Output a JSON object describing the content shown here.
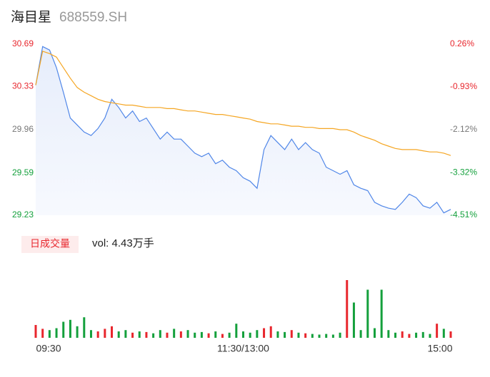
{
  "header": {
    "name": "海目星",
    "code": "688559.SH"
  },
  "chart_data": [
    {
      "type": "line",
      "xlim": [
        0,
        240
      ],
      "xticks": [
        {
          "value": 0,
          "label": "09:30"
        },
        {
          "value": 120,
          "label": "11:30/13:00"
        },
        {
          "value": 240,
          "label": "15:00"
        }
      ],
      "ylim": [
        29.23,
        30.69
      ],
      "yticks": [
        30.69,
        30.33,
        29.96,
        29.59,
        29.23
      ],
      "y2lim": [
        -4.51,
        0.26
      ],
      "y2ticks": [
        {
          "value": 0.26,
          "label": "0.26%"
        },
        {
          "value": -0.93,
          "label": "-0.93%"
        },
        {
          "value": -2.12,
          "label": "-2.12%"
        },
        {
          "value": -3.32,
          "label": "-3.32%"
        },
        {
          "value": -4.51,
          "label": "-4.51%"
        }
      ],
      "ytick_colors": [
        "#e8262d",
        "#e8262d",
        "#777777",
        "#14a03c",
        "#14a03c"
      ],
      "x": [
        0,
        4,
        8,
        12,
        16,
        20,
        24,
        28,
        32,
        36,
        40,
        44,
        48,
        52,
        56,
        60,
        64,
        68,
        72,
        76,
        80,
        84,
        88,
        92,
        96,
        100,
        104,
        108,
        112,
        116,
        120,
        124,
        128,
        132,
        136,
        140,
        144,
        148,
        152,
        156,
        160,
        164,
        168,
        172,
        176,
        180,
        184,
        188,
        192,
        196,
        200,
        204,
        208,
        212,
        216,
        220,
        224,
        228,
        232,
        236,
        240
      ],
      "series": [
        {
          "name": "price",
          "color": "#4f86e8",
          "area": true,
          "values": [
            30.34,
            30.67,
            30.64,
            30.49,
            30.28,
            30.06,
            30.0,
            29.94,
            29.91,
            29.97,
            30.06,
            30.22,
            30.15,
            30.06,
            30.12,
            30.03,
            30.06,
            29.97,
            29.88,
            29.94,
            29.88,
            29.88,
            29.82,
            29.76,
            29.73,
            29.76,
            29.67,
            29.7,
            29.64,
            29.61,
            29.55,
            29.52,
            29.46,
            29.79,
            29.91,
            29.85,
            29.79,
            29.88,
            29.79,
            29.85,
            29.79,
            29.76,
            29.64,
            29.61,
            29.58,
            29.61,
            29.49,
            29.46,
            29.44,
            29.34,
            29.31,
            29.29,
            29.28,
            29.34,
            29.41,
            29.38,
            29.31,
            29.29,
            29.34,
            29.25,
            29.28
          ]
        },
        {
          "name": "average",
          "color": "#f5a623",
          "values": [
            30.34,
            30.63,
            30.61,
            30.58,
            30.49,
            30.4,
            30.32,
            30.28,
            30.25,
            30.22,
            30.2,
            30.19,
            30.18,
            30.17,
            30.17,
            30.16,
            30.15,
            30.15,
            30.15,
            30.14,
            30.14,
            30.13,
            30.12,
            30.12,
            30.11,
            30.1,
            30.09,
            30.09,
            30.08,
            30.07,
            30.06,
            30.05,
            30.03,
            30.02,
            30.01,
            30.01,
            30.0,
            29.99,
            29.99,
            29.98,
            29.98,
            29.97,
            29.97,
            29.97,
            29.96,
            29.96,
            29.94,
            29.91,
            29.89,
            29.87,
            29.84,
            29.82,
            29.8,
            29.79,
            29.79,
            29.79,
            29.78,
            29.77,
            29.77,
            29.76,
            29.74
          ]
        }
      ]
    },
    {
      "type": "bar",
      "label": "日成交量",
      "volume_text": "vol: 4.43万手",
      "xlim": [
        0,
        240
      ],
      "ylim": [
        0,
        100
      ],
      "up_color": "#e8262d",
      "down_color": "#14a03c",
      "x": [
        0,
        4,
        8,
        12,
        16,
        20,
        24,
        28,
        32,
        36,
        40,
        44,
        48,
        52,
        56,
        60,
        64,
        68,
        72,
        76,
        80,
        84,
        88,
        92,
        96,
        100,
        104,
        108,
        112,
        116,
        120,
        124,
        128,
        132,
        136,
        140,
        144,
        148,
        152,
        156,
        160,
        164,
        168,
        172,
        176,
        180,
        184,
        188,
        192,
        196,
        200,
        204,
        208,
        212,
        216,
        220,
        224,
        228,
        232,
        236,
        240
      ],
      "values": [
        20,
        14,
        12,
        15,
        25,
        28,
        18,
        32,
        12,
        10,
        14,
        18,
        10,
        12,
        8,
        10,
        9,
        7,
        12,
        8,
        14,
        10,
        12,
        8,
        9,
        7,
        10,
        6,
        8,
        22,
        10,
        8,
        12,
        15,
        18,
        10,
        9,
        12,
        8,
        7,
        6,
        5,
        6,
        5,
        8,
        90,
        55,
        12,
        75,
        15,
        75,
        12,
        8,
        10,
        6,
        8,
        9,
        6,
        22,
        14,
        10
      ]
    }
  ]
}
